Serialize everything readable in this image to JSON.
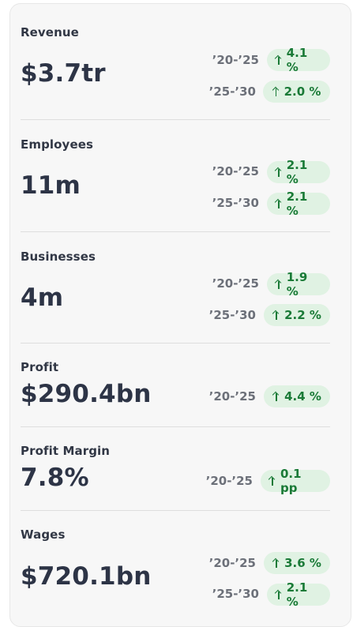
{
  "metrics": [
    {
      "label": "Revenue",
      "value": "$3.7tr",
      "growth": [
        {
          "period": "’20-’25",
          "change": "4.1 %"
        },
        {
          "period": "’25-’30",
          "change": "2.0 %"
        }
      ]
    },
    {
      "label": "Employees",
      "value": "11m",
      "growth": [
        {
          "period": "’20-’25",
          "change": "2.1 %"
        },
        {
          "period": "’25-’30",
          "change": "2.1 %"
        }
      ]
    },
    {
      "label": "Businesses",
      "value": "4m",
      "growth": [
        {
          "period": "’20-’25",
          "change": "1.9 %"
        },
        {
          "period": "’25-’30",
          "change": "2.2 %"
        }
      ]
    },
    {
      "label": "Profit",
      "value": "$290.4bn",
      "growth": [
        {
          "period": "’20-’25",
          "change": "4.4 %"
        }
      ]
    },
    {
      "label": "Profit Margin",
      "value": "7.8%",
      "growth": [
        {
          "period": "’20-’25",
          "change": "0.1 pp"
        }
      ]
    },
    {
      "label": "Wages",
      "value": "$720.1bn",
      "growth": [
        {
          "period": "’20-’25",
          "change": "3.6 %"
        },
        {
          "period": "’25-’30",
          "change": "2.1 %"
        }
      ]
    }
  ],
  "icons": {
    "growth_arrow": "arrow-up-icon"
  },
  "colors": {
    "badge_bg": "#e0f2e3",
    "badge_text": "#1a7a37",
    "value_text": "#2d3446",
    "period_text": "#6c7079"
  }
}
